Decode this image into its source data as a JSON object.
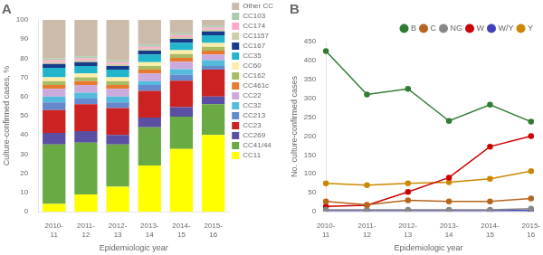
{
  "chart_data": [
    {
      "type": "bar",
      "title": "A",
      "stacked": true,
      "grid": false,
      "legend": "right",
      "xlabel": "Epidemiologic year",
      "ylabel": "Culture-confirmed cases, %",
      "categories": [
        "2010-\n11",
        "2011-\n12",
        "2012-\n13",
        "2013-\n14",
        "2014-\n15",
        "2015-\n16"
      ],
      "ylim": [
        0,
        100
      ],
      "yticks": [
        0,
        10,
        20,
        30,
        40,
        50,
        60,
        70,
        80,
        90,
        100
      ],
      "series": [
        {
          "name": "CC11",
          "color": "#ffff00",
          "values": [
            4,
            9,
            13,
            24,
            32.673267,
            40
          ]
        },
        {
          "name": "CC41/44",
          "color": "#6aaa44",
          "values": [
            31,
            27,
            22,
            20,
            16.831683,
            16
          ]
        },
        {
          "name": "CC269",
          "color": "#5a4fa2",
          "values": [
            6,
            6,
            5,
            5,
            4.950495,
            4
          ]
        },
        {
          "name": "CC23",
          "color": "#cc2222",
          "values": [
            12,
            14,
            14,
            14,
            13.861386,
            14
          ]
        },
        {
          "name": "CC213",
          "color": "#6688cc",
          "values": [
            4,
            3,
            3,
            3,
            2.970297,
            2
          ]
        },
        {
          "name": "CC32",
          "color": "#55bbdd",
          "values": [
            3,
            3,
            3,
            2,
            2.970297,
            3
          ]
        },
        {
          "name": "CC22",
          "color": "#ccaadd",
          "values": [
            4,
            4,
            4,
            4,
            3.960396,
            3
          ]
        },
        {
          "name": "CC461c",
          "color": "#e87a30",
          "values": [
            2,
            2,
            2,
            2,
            1.980198,
            2
          ]
        },
        {
          "name": "CC162",
          "color": "#aabb66",
          "values": [
            2,
            2,
            2,
            2,
            1.980198,
            2
          ]
        },
        {
          "name": "CC60",
          "color": "#ffeeaa",
          "values": [
            2,
            2,
            2,
            2,
            1.980198,
            2
          ]
        },
        {
          "name": "CC35",
          "color": "#22b5cc",
          "values": [
            5,
            4,
            4,
            4,
            3.960396,
            4
          ]
        },
        {
          "name": "CC167",
          "color": "#1a3a8a",
          "values": [
            2,
            2,
            2,
            2,
            1.980198,
            2
          ]
        },
        {
          "name": "CC1157",
          "color": "#ccccaa",
          "values": [
            1,
            1,
            1,
            1,
            0.990099,
            1
          ]
        },
        {
          "name": "CC174",
          "color": "#ffaacc",
          "values": [
            1,
            1,
            1,
            1,
            0.990099,
            1
          ]
        },
        {
          "name": "CC103",
          "color": "#aaccaa",
          "values": [
            1,
            1,
            1,
            1,
            0.990099,
            1
          ]
        },
        {
          "name": "Other CC",
          "color": "#ccbbaa",
          "values": [
            20,
            19,
            21,
            13,
            6.930693,
            3
          ]
        }
      ]
    },
    {
      "type": "line",
      "title": "B",
      "grid": false,
      "legend": "upper right",
      "xlabel": "Epidemiologic year",
      "ylabel": "No. culture-confirmed cases",
      "categories": [
        "2010-\n11",
        "2011-\n12",
        "2012-\n13",
        "2013-\n14",
        "2014-\n15",
        "2015-\n16"
      ],
      "ylim": [
        0,
        450
      ],
      "yticks": [
        0,
        50,
        100,
        150,
        200,
        250,
        300,
        350,
        400,
        450
      ],
      "series": [
        {
          "name": "B",
          "color": "#2e7d32",
          "marker": "circle",
          "values": [
            425,
            310,
            325,
            240,
            283,
            238
          ]
        },
        {
          "name": "C",
          "color": "#b5651d",
          "marker": "circle",
          "values": [
            27,
            18,
            30,
            27,
            27,
            35
          ]
        },
        {
          "name": "NG",
          "color": "#888888",
          "marker": "circle",
          "values": [
            5,
            5,
            5,
            5,
            5,
            8
          ]
        },
        {
          "name": "W",
          "color": "#cc0000",
          "marker": "circle",
          "values": [
            14,
            17,
            52,
            90,
            172,
            200
          ]
        },
        {
          "name": "W/Y",
          "color": "#4040bb",
          "marker": "circle",
          "values": [
            3,
            3,
            3,
            3,
            3,
            3
          ]
        },
        {
          "name": "Y",
          "color": "#cc8800",
          "marker": "circle",
          "values": [
            75,
            70,
            75,
            78,
            87,
            107
          ]
        }
      ]
    }
  ]
}
